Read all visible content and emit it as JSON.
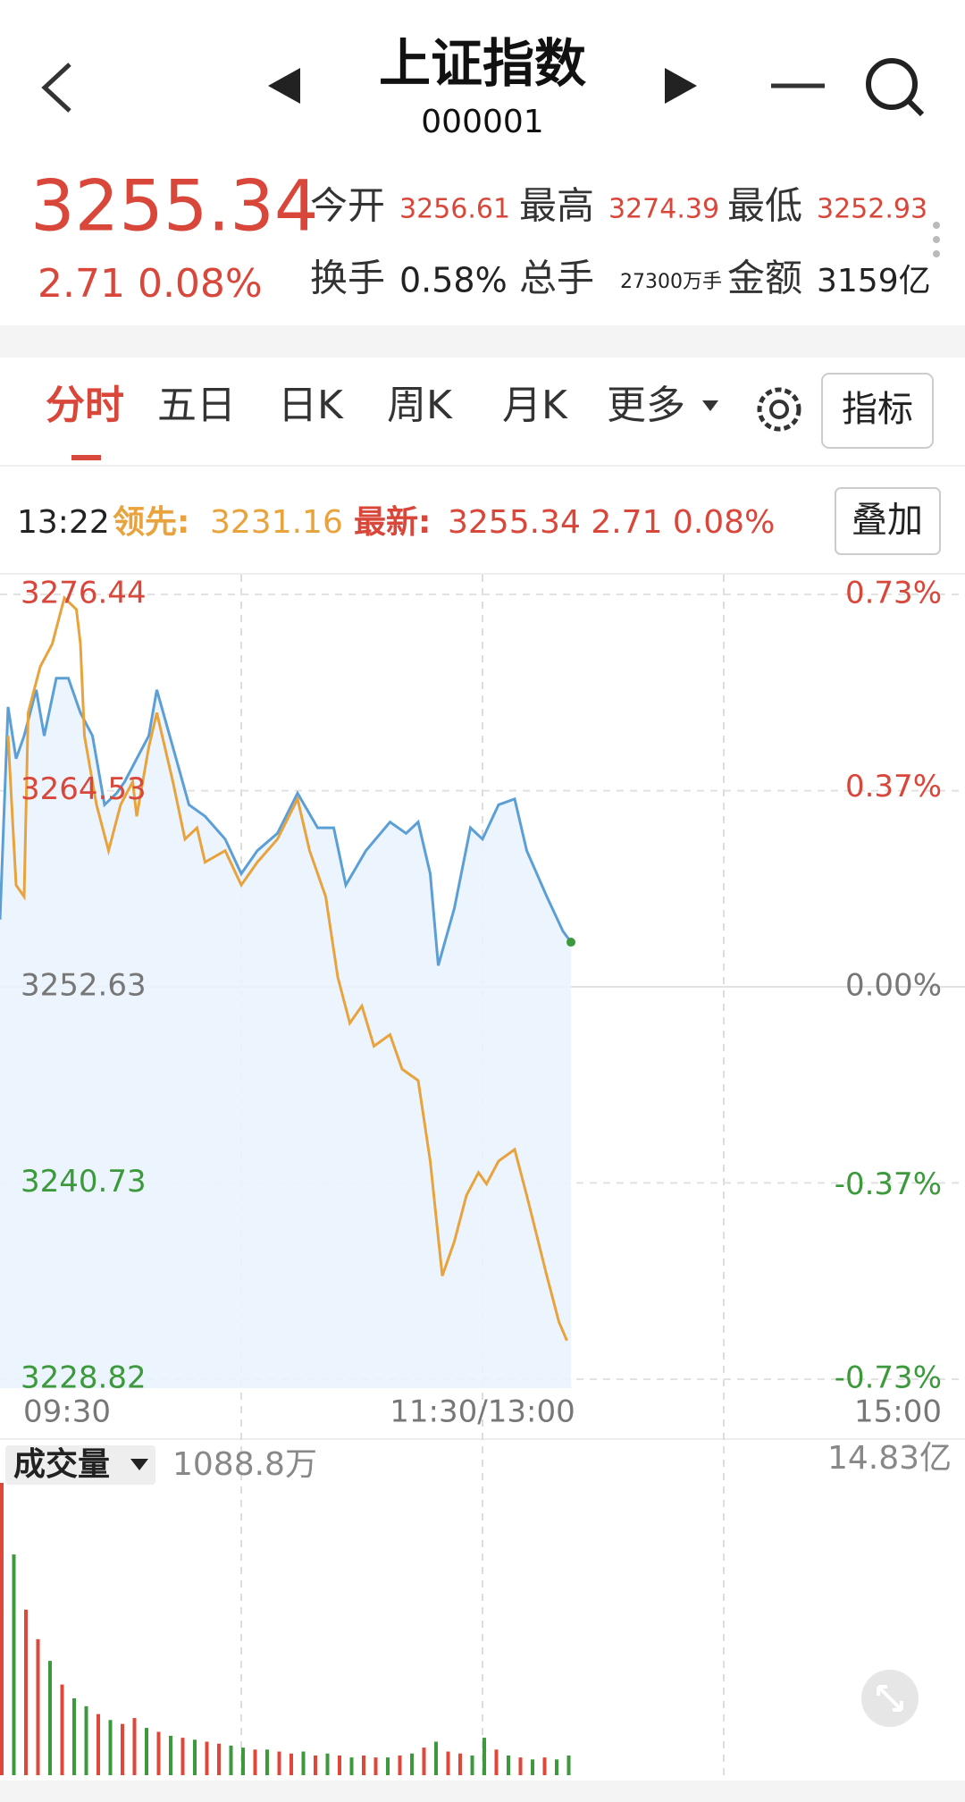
{
  "header": {
    "title": "上证指数",
    "code": "000001"
  },
  "quote": {
    "price": "3255.34",
    "change": "2.71 0.08%",
    "stats": [
      {
        "label": "今开",
        "value": "3256.61",
        "color": "#d9463a"
      },
      {
        "label": "最高",
        "value": "3274.39",
        "color": "#d9463a"
      },
      {
        "label": "最低",
        "value": "3252.93",
        "color": "#d9463a"
      },
      {
        "label": "换手",
        "value": "0.58%",
        "color": "#222222"
      },
      {
        "label": "总手",
        "value": "27300万手",
        "color": "#222222"
      },
      {
        "label": "金额",
        "value": "3159亿",
        "color": "#222222"
      }
    ]
  },
  "tabs": [
    "分时",
    "五日",
    "日K",
    "周K",
    "月K",
    "更多"
  ],
  "buttons": {
    "indicator": "指标",
    "overlay": "叠加"
  },
  "info": {
    "time": "13:22",
    "lead_label": "领先:",
    "lead_value": "3231.16",
    "latest_label": "最新:",
    "latest_value": "3255.34 2.71 0.08%"
  },
  "chart_data": [
    {
      "type": "line",
      "xlim": [
        0,
        240
      ],
      "xticks": [
        {
          "value": 0,
          "label": "09:30"
        },
        {
          "value": 120,
          "label": "11:30/13:00"
        },
        {
          "value": 240,
          "label": "15:00"
        }
      ],
      "xgrid": [
        60,
        120,
        180
      ],
      "ylim": [
        3228.82,
        3276.44
      ],
      "yticks": [
        3276.44,
        3264.53,
        3252.63,
        3240.73,
        3228.82
      ],
      "y2lim": [
        -0.73,
        0.73
      ],
      "y2ticks": [
        {
          "value": 0.73,
          "label": "0.73%"
        },
        {
          "value": 0.37,
          "label": "0.37%"
        },
        {
          "value": 0,
          "label": "0.00%"
        },
        {
          "value": -0.37,
          "label": "-0.37%"
        },
        {
          "value": -0.73,
          "label": "-0.73%"
        }
      ],
      "grid": true,
      "series": [
        {
          "color": "#5b9fd6",
          "area": true,
          "x": [
            0,
            2,
            4,
            6,
            9,
            11,
            14,
            17,
            20,
            23,
            26,
            29,
            31,
            34,
            37,
            39,
            43,
            47,
            51,
            56,
            60,
            64,
            69,
            74,
            79,
            83,
            86,
            91,
            97,
            101,
            104,
            107,
            109,
            113,
            117,
            120,
            124,
            128,
            131,
            136,
            140,
            142
          ],
          "values": [
            3256.71,
            3269.61,
            3266.47,
            3267.86,
            3270.65,
            3267.86,
            3271.35,
            3271.35,
            3269.26,
            3267.86,
            3263.68,
            3264.38,
            3265.07,
            3266.47,
            3267.86,
            3270.65,
            3267.17,
            3263.68,
            3262.98,
            3261.59,
            3259.49,
            3260.89,
            3261.94,
            3264.38,
            3262.28,
            3262.28,
            3258.8,
            3260.89,
            3262.63,
            3261.94,
            3262.63,
            3259.49,
            3253.92,
            3257.4,
            3262.28,
            3261.59,
            3263.68,
            3264.03,
            3260.89,
            3258.1,
            3256.01,
            3255.34
          ]
        },
        {
          "color": "#e8a33d",
          "x": [
            2,
            4,
            6,
            7,
            10,
            13,
            16,
            19,
            20,
            21,
            24,
            27,
            30,
            33,
            34,
            37,
            39,
            43,
            46,
            49,
            51,
            56,
            60,
            64,
            69,
            74,
            77,
            81,
            84,
            87,
            90,
            93,
            97,
            100,
            104,
            107,
            110,
            113,
            116,
            119,
            121,
            124,
            128,
            131,
            136,
            139,
            141
          ],
          "values": [
            3267.86,
            3258.8,
            3258.1,
            3269.26,
            3272.05,
            3273.44,
            3276.23,
            3275.53,
            3273.44,
            3267.86,
            3263.68,
            3260.89,
            3263.68,
            3265.07,
            3262.98,
            3267.17,
            3269.26,
            3265.07,
            3261.59,
            3262.28,
            3260.19,
            3260.89,
            3258.8,
            3260.19,
            3261.59,
            3264.03,
            3260.89,
            3258.1,
            3253.22,
            3250.43,
            3251.47,
            3249.03,
            3249.73,
            3247.64,
            3246.94,
            3242.06,
            3235.09,
            3237.18,
            3239.97,
            3241.36,
            3240.67,
            3242.06,
            3242.76,
            3239.97,
            3235.09,
            3232.3,
            3231.16
          ]
        }
      ]
    },
    {
      "type": "bar",
      "label": "成交量",
      "current": "1088.8万",
      "xlim": [
        0,
        240
      ],
      "ylim": [
        0,
        14.83
      ],
      "yticks": [
        {
          "value": 14.83,
          "label": "14.83亿"
        }
      ],
      "x": [
        0,
        3,
        6,
        9,
        12,
        15,
        18,
        21,
        24,
        27,
        30,
        33,
        36,
        39,
        42,
        45,
        48,
        51,
        54,
        57,
        60,
        63,
        66,
        69,
        72,
        75,
        78,
        81,
        84,
        87,
        90,
        93,
        96,
        99,
        102,
        105,
        108,
        111,
        114,
        117,
        120,
        123,
        126,
        129,
        132,
        135,
        138,
        141
      ],
      "values": [
        14.83,
        11.2,
        8.4,
        6.9,
        5.8,
        4.6,
        3.9,
        3.5,
        3.1,
        2.8,
        2.6,
        2.9,
        2.4,
        2.2,
        2.0,
        1.9,
        1.8,
        1.7,
        1.6,
        1.5,
        1.4,
        1.3,
        1.3,
        1.2,
        1.1,
        1.2,
        1.0,
        1.1,
        1.0,
        0.9,
        1.0,
        0.9,
        0.9,
        1.0,
        1.1,
        1.4,
        1.7,
        1.2,
        1.1,
        1.0,
        1.9,
        1.3,
        1.0,
        0.9,
        0.8,
        0.9,
        0.8,
        1.0
      ],
      "colors": [
        "#e0473b",
        "#3c9a3c",
        "#e0473b",
        "#e0473b",
        "#3c9a3c",
        "#e0473b",
        "#3c9a3c",
        "#3c9a3c",
        "#e0473b",
        "#3c9a3c",
        "#e0473b",
        "#e0473b",
        "#3c9a3c",
        "#e0473b",
        "#3c9a3c",
        "#e0473b",
        "#3c9a3c",
        "#e0473b",
        "#e0473b",
        "#3c9a3c",
        "#3c9a3c",
        "#e0473b",
        "#3c9a3c",
        "#e0473b",
        "#e0473b",
        "#3c9a3c",
        "#e0473b",
        "#3c9a3c",
        "#e0473b",
        "#3c9a3c",
        "#e0473b",
        "#e0473b",
        "#3c9a3c",
        "#e0473b",
        "#3c9a3c",
        "#e0473b",
        "#3c9a3c",
        "#e0473b",
        "#e0473b",
        "#3c9a3c",
        "#3c9a3c",
        "#e0473b",
        "#3c9a3c",
        "#e0473b",
        "#3c9a3c",
        "#e0473b",
        "#3c9a3c",
        "#3c9a3c"
      ]
    }
  ]
}
